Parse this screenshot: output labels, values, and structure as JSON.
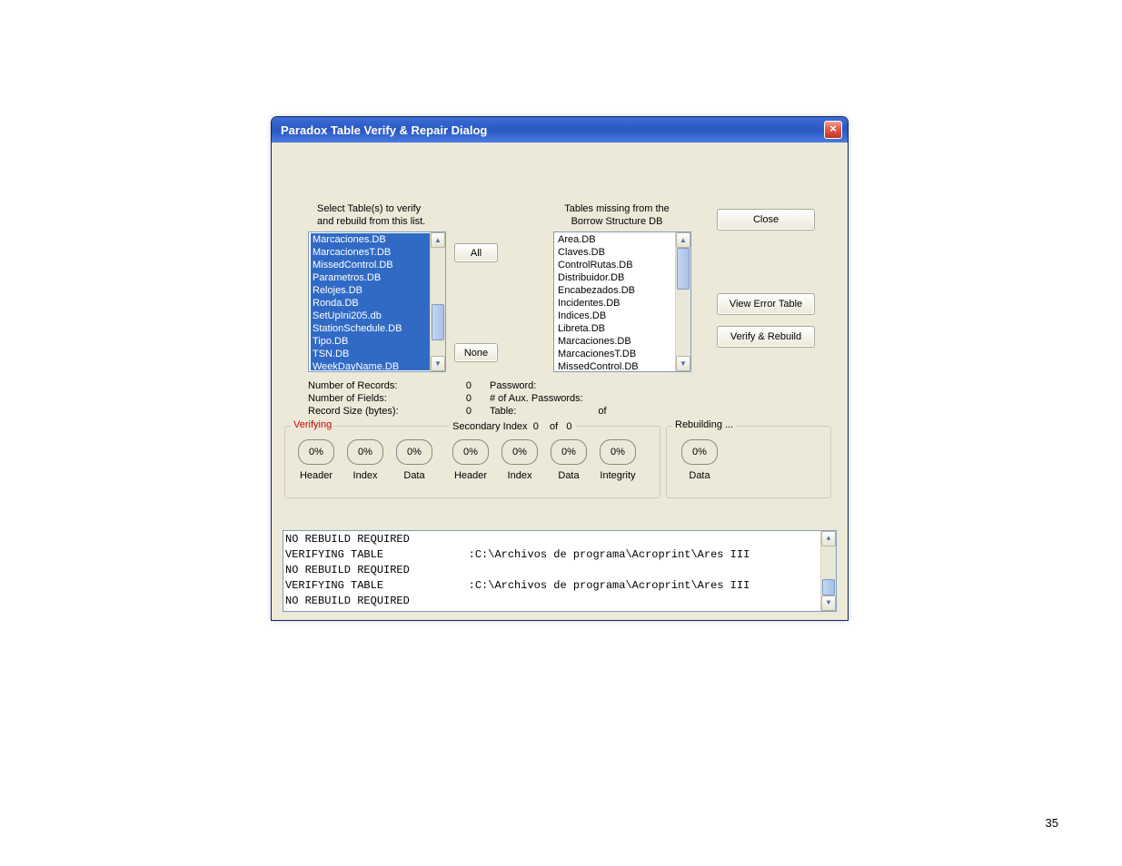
{
  "page_number": "35",
  "dialog": {
    "title": "Paradox Table Verify & Repair Dialog",
    "bg_color": "#ece9d8",
    "titlebar_color": "#2a57c1",
    "close_x": "×"
  },
  "labels": {
    "select_tables_l1": "Select Table(s) to verify",
    "select_tables_l2": "and rebuild from this list.",
    "missing_l1": "Tables missing from the",
    "missing_l2": "Borrow Structure DB",
    "num_records": "Number of Records:",
    "num_fields": "Number of Fields:",
    "record_size": "Record Size (bytes):",
    "password": "Password:",
    "aux_passwords": "# of Aux. Passwords:",
    "table": "Table:",
    "of": "of",
    "sec_index": "Secondary Index",
    "sec_index_cur": "0",
    "sec_index_of": "of",
    "sec_index_tot": "0"
  },
  "values": {
    "num_records": "0",
    "num_fields": "0",
    "record_size": "0"
  },
  "buttons": {
    "all": "All",
    "none": "None",
    "close": "Close",
    "view_error": "View Error Table",
    "verify": "Verify & Rebuild"
  },
  "left_list": [
    "Marcaciones.DB",
    "MarcacionesT.DB",
    "MissedControl.DB",
    "Parametros.DB",
    "Relojes.DB",
    "Ronda.DB",
    "SetUpIni205.db",
    "StationSchedule.DB",
    "Tipo.DB",
    "TSN.DB",
    "WeekDayName.DB"
  ],
  "right_list": [
    "Area.DB",
    "Claves.DB",
    "ControlRutas.DB",
    "Distribuidor.DB",
    "Encabezados.DB",
    "Incidentes.DB",
    "Indices.DB",
    "Libreta.DB",
    "Marcaciones.DB",
    "MarcacionesT.DB",
    "MissedControl.DB"
  ],
  "groups": {
    "verifying": "Verifying",
    "rebuilding": "Rebuilding ..."
  },
  "verifying_pcts": [
    {
      "value": "0%",
      "label": "Header"
    },
    {
      "value": "0%",
      "label": "Index"
    },
    {
      "value": "0%",
      "label": "Data"
    }
  ],
  "sec_pcts": [
    {
      "value": "0%",
      "label": "Header"
    },
    {
      "value": "0%",
      "label": "Index"
    },
    {
      "value": "0%",
      "label": "Data"
    },
    {
      "value": "0%",
      "label": "Integrity"
    }
  ],
  "rebuild_pcts": [
    {
      "value": "0%",
      "label": "Data"
    }
  ],
  "log_lines": [
    "NO REBUILD REQUIRED",
    "VERIFYING TABLE             :C:\\Archivos de programa\\Acroprint\\Ares III",
    "NO REBUILD REQUIRED",
    "VERIFYING TABLE             :C:\\Archivos de programa\\Acroprint\\Ares III",
    "NO REBUILD REQUIRED"
  ],
  "colors": {
    "selected_bg": "#316ac5",
    "selected_fg": "#ffffff",
    "verifying_legend": "#d00000"
  }
}
